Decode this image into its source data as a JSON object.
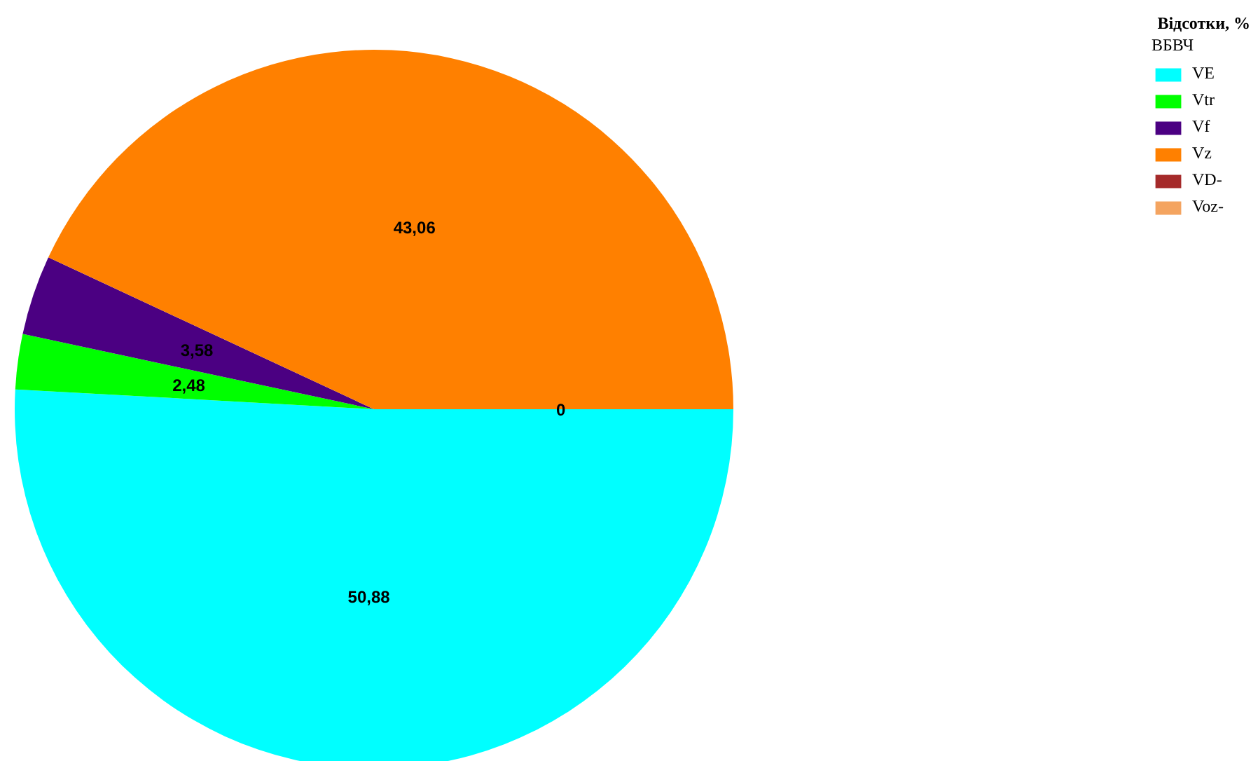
{
  "chart_data": {
    "type": "pie",
    "title": "Відсотки, %",
    "legend_title": "ВБВЧ",
    "categories": [
      "VE",
      "Vtr",
      "Vf",
      "Vz",
      "VD-",
      "Voz-"
    ],
    "values": [
      50.88,
      2.48,
      3.58,
      43.06,
      0,
      0
    ],
    "colors": [
      "#00ffff",
      "#00ff00",
      "#4b0082",
      "#ff8000",
      "#a52a2a",
      "#f4a460"
    ],
    "value_labels": [
      "50,88",
      "2,48",
      "3,58",
      "43,06",
      "0",
      null
    ],
    "legend": "top right"
  }
}
